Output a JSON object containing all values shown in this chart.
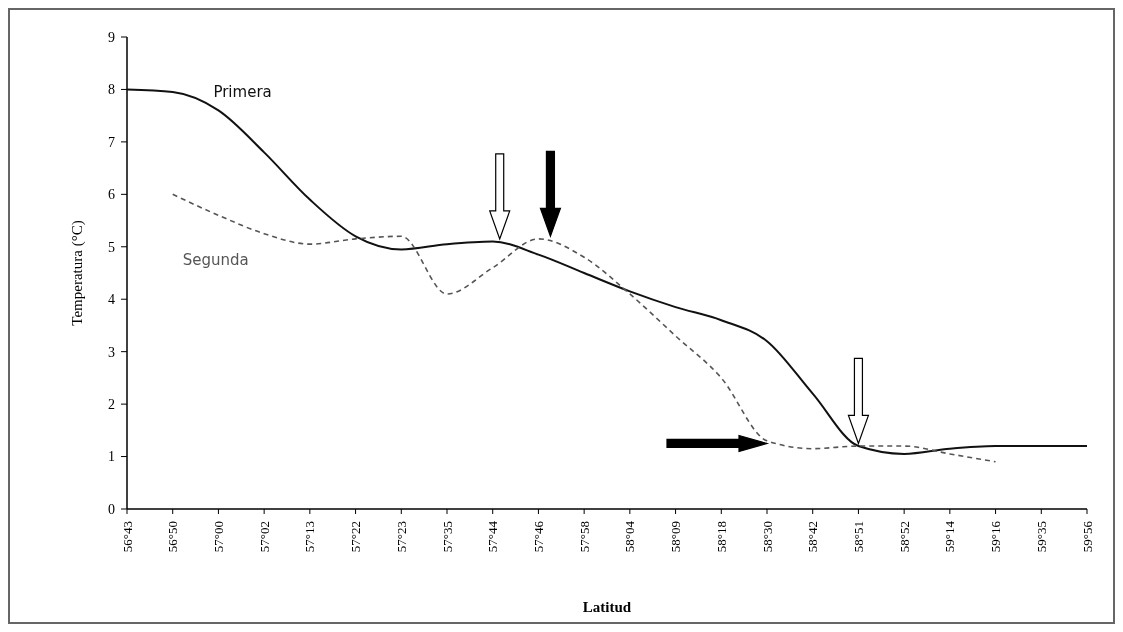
{
  "chart_data": {
    "type": "line",
    "xlabel": "Latitud",
    "ylabel": "Temperatura (°C)",
    "categories": [
      "56°43",
      "56°50",
      "57°00",
      "57°02",
      "57°13",
      "57°22",
      "57°23",
      "57°35",
      "57°44",
      "57°46",
      "57°58",
      "58°04",
      "58°09",
      "58°18",
      "58°30",
      "58°42",
      "58°51",
      "58°52",
      "59°14",
      "59°16",
      "59°35",
      "59°56"
    ],
    "series": [
      {
        "name": "Primera",
        "color": "#111111",
        "line_style": "solid",
        "values": [
          8.0,
          7.95,
          7.6,
          6.8,
          5.9,
          5.2,
          4.95,
          5.05,
          5.1,
          4.85,
          4.5,
          4.15,
          3.85,
          3.6,
          3.2,
          2.2,
          1.2,
          1.05,
          1.15,
          1.2,
          1.2,
          1.2
        ]
      },
      {
        "name": "Segunda",
        "color": "#555555",
        "line_style": "dashed",
        "values": [
          null,
          6.0,
          5.6,
          5.25,
          5.05,
          5.15,
          5.2,
          4.1,
          4.6,
          5.15,
          4.8,
          4.1,
          3.3,
          2.5,
          1.3,
          1.15,
          1.2,
          1.2,
          1.05,
          0.9,
          null,
          null
        ]
      }
    ],
    "ylim": [
      0,
      9
    ],
    "yticks": [
      0,
      1,
      2,
      3,
      4,
      5,
      6,
      7,
      8,
      9
    ],
    "grid": false,
    "marker": "none"
  }
}
